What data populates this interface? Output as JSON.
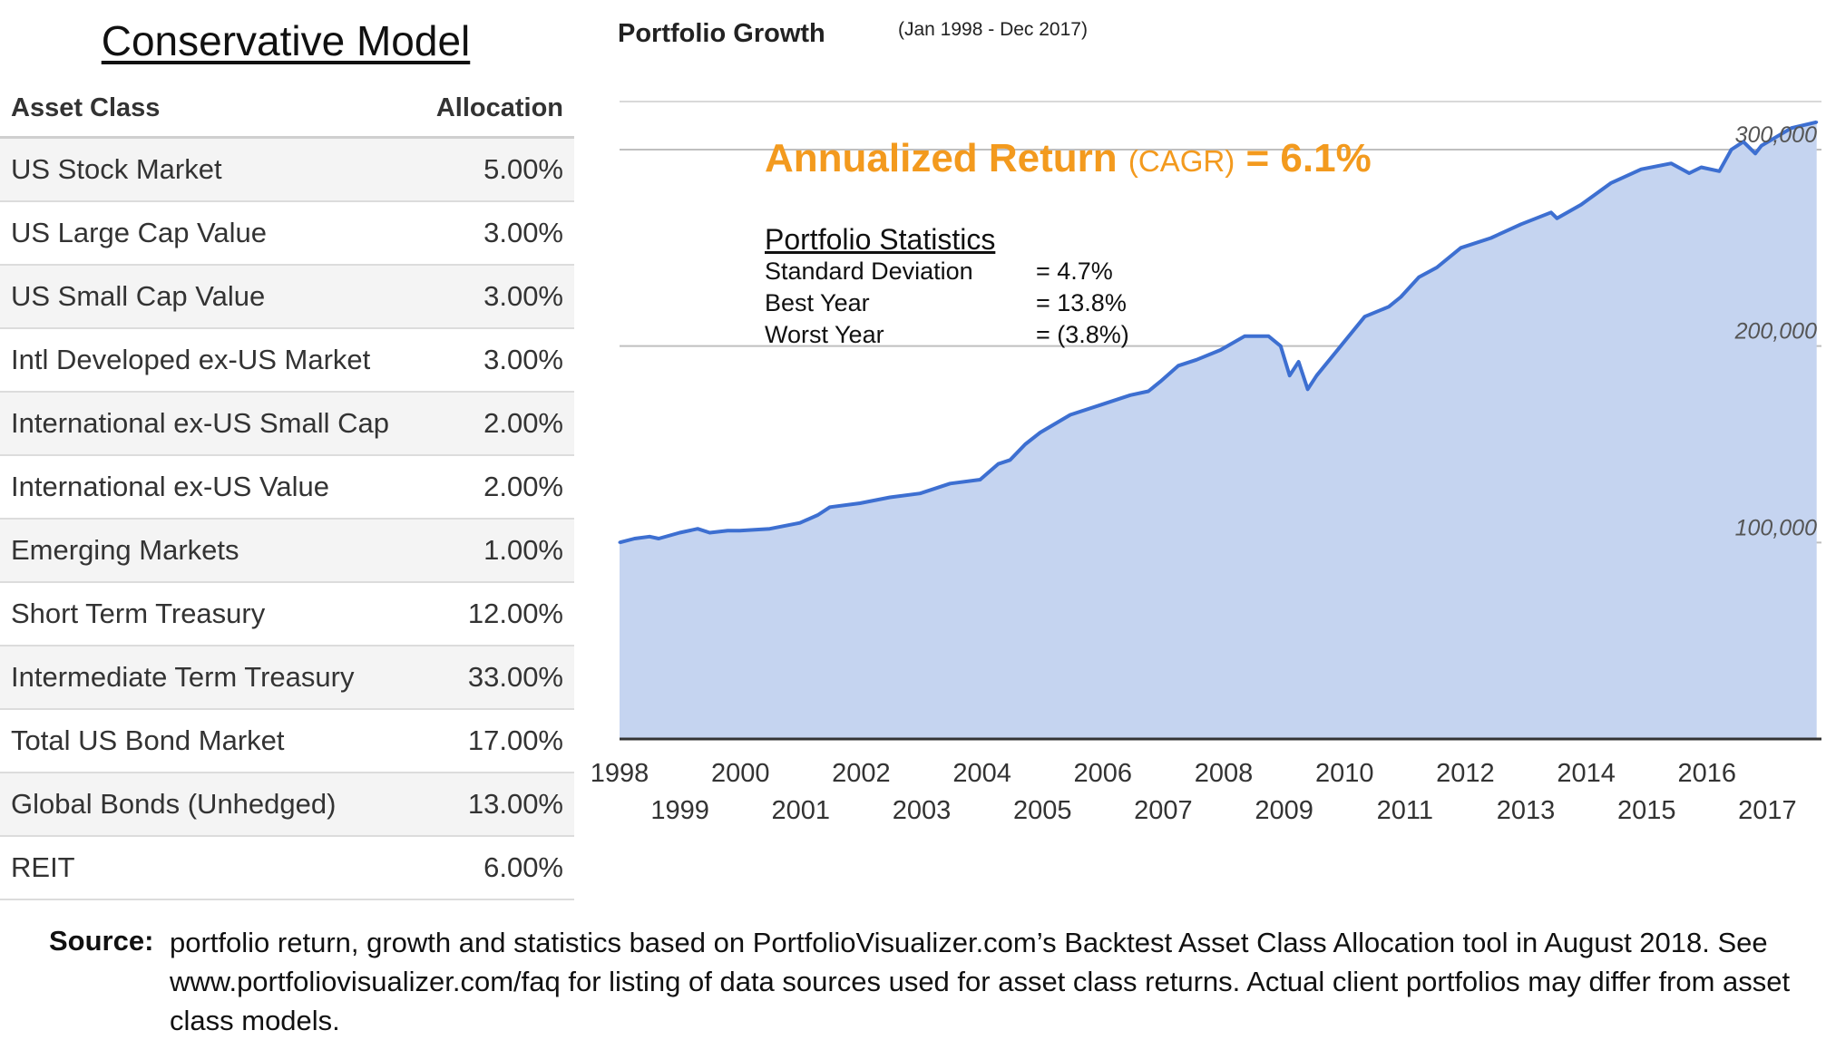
{
  "table": {
    "title": "Conservative Model",
    "headers": [
      "Asset Class",
      "Allocation"
    ],
    "rows": [
      {
        "asset": "US Stock Market",
        "allocation": "5.00%"
      },
      {
        "asset": "US Large Cap Value",
        "allocation": "3.00%"
      },
      {
        "asset": "US Small Cap Value",
        "allocation": "3.00%"
      },
      {
        "asset": "Intl Developed ex-US Market",
        "allocation": "3.00%"
      },
      {
        "asset": "International ex-US Small Cap",
        "allocation": "2.00%"
      },
      {
        "asset": "International ex-US Value",
        "allocation": "2.00%"
      },
      {
        "asset": "Emerging Markets",
        "allocation": "1.00%"
      },
      {
        "asset": "Short Term Treasury",
        "allocation": "12.00%"
      },
      {
        "asset": "Intermediate Term Treasury",
        "allocation": "33.00%"
      },
      {
        "asset": "Total US Bond Market",
        "allocation": "17.00%"
      },
      {
        "asset": "Global Bonds (Unhedged)",
        "allocation": "13.00%"
      },
      {
        "asset": "REIT",
        "allocation": "6.00%"
      }
    ]
  },
  "chart_header": {
    "title": "Portfolio Growth",
    "period": "(Jan 1998 - Dec 2017)"
  },
  "annualized": {
    "label": "Annualized Return",
    "sub": "(CAGR)",
    "equals": "=",
    "value": "6.1%"
  },
  "statistics": {
    "title": "Portfolio Statistics",
    "items": [
      {
        "label": "Standard Deviation",
        "value": "= 4.7%"
      },
      {
        "label": "Best Year",
        "value": "= 13.8%"
      },
      {
        "label": "Worst Year",
        "value": "= (3.8%)"
      }
    ]
  },
  "source": {
    "label": "Source:",
    "text": "portfolio return, growth and statistics based on PortfolioVisualizer.com’s Backtest Asset Class Allocation tool in August 2018. See www.portfoliovisualizer.com/faq for listing of data sources used for asset class returns. Actual client portfolios may differ from asset class models."
  },
  "colors": {
    "line": "#3d6fd1",
    "fill": "#c5d4f0",
    "accent": "#f39a1e",
    "gridline": "#bfbfbf"
  },
  "chart_data": {
    "type": "area",
    "title": "Portfolio Growth",
    "subtitle": "(Jan 1998 - Dec 2017)",
    "xlabel": "",
    "ylabel": "",
    "xlim": [
      1998,
      2018
    ],
    "ylim": [
      0,
      330000
    ],
    "y_ticks": [
      100000,
      200000,
      300000
    ],
    "y_tick_labels": [
      "100,000",
      "200,000",
      "300,000"
    ],
    "x_ticks": [
      1998,
      1999,
      2000,
      2001,
      2002,
      2003,
      2004,
      2005,
      2006,
      2007,
      2008,
      2009,
      2010,
      2011,
      2012,
      2013,
      2014,
      2015,
      2016,
      2017
    ],
    "x_tick_labels": [
      "1998",
      "1999",
      "2000",
      "2001",
      "2002",
      "2003",
      "2004",
      "2005",
      "2006",
      "2007",
      "2008",
      "2009",
      "2010",
      "2011",
      "2012",
      "2013",
      "2014",
      "2015",
      "2016",
      "2017"
    ],
    "grid": true,
    "legend": "none",
    "series": [
      {
        "values": [
          [
            1998.0,
            100000
          ],
          [
            1998.25,
            102000
          ],
          [
            1998.5,
            103000
          ],
          [
            1998.65,
            102000
          ],
          [
            1999.0,
            105000
          ],
          [
            1999.3,
            107000
          ],
          [
            1999.5,
            105000
          ],
          [
            1999.8,
            106000
          ],
          [
            2000.0,
            106000
          ],
          [
            2000.5,
            107000
          ],
          [
            2001.0,
            110000
          ],
          [
            2001.3,
            114000
          ],
          [
            2001.5,
            118000
          ],
          [
            2002.0,
            120000
          ],
          [
            2002.5,
            123000
          ],
          [
            2003.0,
            125000
          ],
          [
            2003.5,
            130000
          ],
          [
            2004.0,
            132000
          ],
          [
            2004.3,
            140000
          ],
          [
            2004.5,
            142000
          ],
          [
            2004.75,
            150000
          ],
          [
            2005.0,
            156000
          ],
          [
            2005.5,
            165000
          ],
          [
            2006.0,
            170000
          ],
          [
            2006.5,
            175000
          ],
          [
            2006.8,
            177000
          ],
          [
            2007.0,
            182000
          ],
          [
            2007.3,
            190000
          ],
          [
            2007.6,
            193000
          ],
          [
            2008.0,
            198000
          ],
          [
            2008.4,
            205000
          ],
          [
            2008.8,
            205000
          ],
          [
            2009.0,
            200000
          ],
          [
            2009.15,
            185000
          ],
          [
            2009.3,
            192000
          ],
          [
            2009.45,
            178000
          ],
          [
            2009.6,
            185000
          ],
          [
            2010.0,
            200000
          ],
          [
            2010.4,
            215000
          ],
          [
            2010.8,
            220000
          ],
          [
            2011.0,
            225000
          ],
          [
            2011.3,
            235000
          ],
          [
            2011.6,
            240000
          ],
          [
            2012.0,
            250000
          ],
          [
            2012.5,
            255000
          ],
          [
            2013.0,
            262000
          ],
          [
            2013.5,
            268000
          ],
          [
            2013.6,
            265000
          ],
          [
            2014.0,
            272000
          ],
          [
            2014.5,
            283000
          ],
          [
            2015.0,
            290000
          ],
          [
            2015.5,
            293000
          ],
          [
            2015.8,
            288000
          ],
          [
            2016.0,
            291000
          ],
          [
            2016.3,
            289000
          ],
          [
            2016.5,
            300000
          ],
          [
            2016.7,
            304000
          ],
          [
            2016.9,
            298000
          ],
          [
            2017.0,
            302000
          ],
          [
            2017.5,
            311000
          ],
          [
            2017.92,
            314000
          ]
        ]
      }
    ]
  }
}
